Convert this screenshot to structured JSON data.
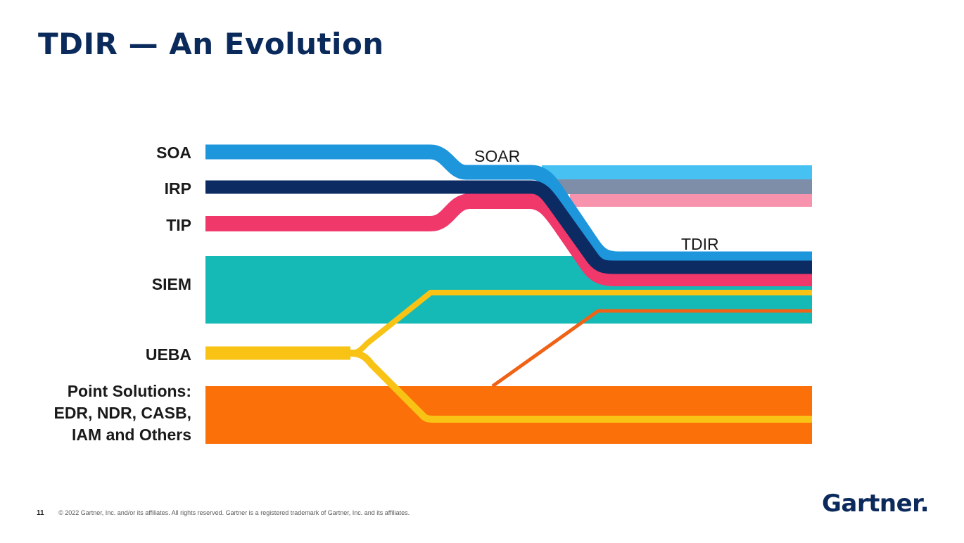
{
  "slide": {
    "title": "TDIR — An Evolution",
    "page_number": "11",
    "copyright": "© 2022 Gartner, Inc. and/or its affiliates. All rights reserved. Gartner is a registered trademark of Gartner, Inc. and its affiliates.",
    "logo_text": "Gartner",
    "logo_dot": "."
  },
  "diagram": {
    "left_labels": {
      "soa": "SOA",
      "irp": "IRP",
      "tip": "TIP",
      "siem": "SIEM",
      "ueba": "UEBA",
      "point_solutions": [
        "Point Solutions:",
        "EDR, NDR, CASB,",
        "IAM and Others"
      ]
    },
    "soar_label": "SOAR",
    "tdir_label": "TDIR",
    "colors": {
      "soa": "#1e96dc",
      "soa_light": "#47c1f2",
      "irp": "#0d2b63",
      "irp_light": "#7f8ea8",
      "tip": "#f0386b",
      "tip_light": "#f793ad",
      "siem": "#15bab7",
      "ueba": "#f8c315",
      "point_solutions": "#fb7009",
      "orange_line": "#f06216"
    }
  }
}
